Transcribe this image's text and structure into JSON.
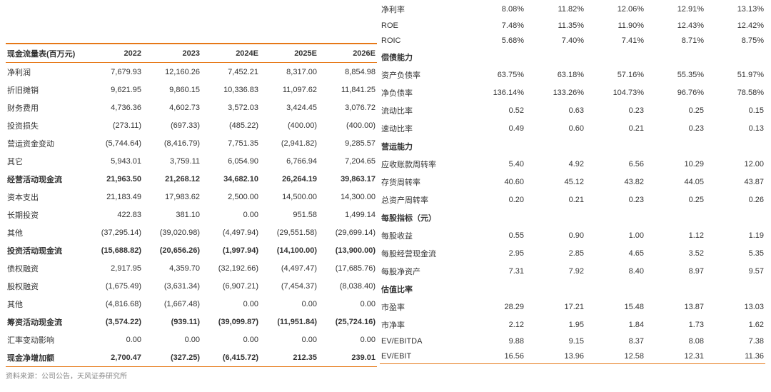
{
  "colors": {
    "accent": "#e67817",
    "text": "#333333",
    "muted": "#888888",
    "bg": "#ffffff"
  },
  "left": {
    "title": "现金流量表(百万元)",
    "years": [
      "2022",
      "2023",
      "2024E",
      "2025E",
      "2026E"
    ],
    "rows": [
      {
        "label": "净利润",
        "v": [
          "7,679.93",
          "12,160.26",
          "7,452.21",
          "8,317.00",
          "8,854.98"
        ]
      },
      {
        "label": "折旧摊销",
        "v": [
          "9,621.95",
          "9,860.15",
          "10,336.83",
          "11,097.62",
          "11,841.25"
        ]
      },
      {
        "label": "财务费用",
        "v": [
          "4,736.36",
          "4,602.73",
          "3,572.03",
          "3,424.45",
          "3,076.72"
        ]
      },
      {
        "label": "投资损失",
        "v": [
          "(273.11)",
          "(697.33)",
          "(485.22)",
          "(400.00)",
          "(400.00)"
        ]
      },
      {
        "label": "营运资金变动",
        "v": [
          "(5,744.64)",
          "(8,416.79)",
          "7,751.35",
          "(2,941.82)",
          "9,285.57"
        ]
      },
      {
        "label": "其它",
        "v": [
          "5,943.01",
          "3,759.11",
          "6,054.90",
          "6,766.94",
          "7,204.65"
        ]
      },
      {
        "label": "经营活动现金流",
        "bold": true,
        "v": [
          "21,963.50",
          "21,268.12",
          "34,682.10",
          "26,264.19",
          "39,863.17"
        ]
      },
      {
        "label": "资本支出",
        "v": [
          "21,183.49",
          "17,983.62",
          "2,500.00",
          "14,500.00",
          "14,300.00"
        ]
      },
      {
        "label": "长期投资",
        "v": [
          "422.83",
          "381.10",
          "0.00",
          "951.58",
          "1,499.14"
        ]
      },
      {
        "label": "其他",
        "v": [
          "(37,295.14)",
          "(39,020.98)",
          "(4,497.94)",
          "(29,551.58)",
          "(29,699.14)"
        ]
      },
      {
        "label": "投资活动现金流",
        "bold": true,
        "v": [
          "(15,688.82)",
          "(20,656.26)",
          "(1,997.94)",
          "(14,100.00)",
          "(13,900.00)"
        ]
      },
      {
        "label": "债权融资",
        "v": [
          "2,917.95",
          "4,359.70",
          "(32,192.66)",
          "(4,497.47)",
          "(17,685.76)"
        ]
      },
      {
        "label": "股权融资",
        "v": [
          "(1,675.49)",
          "(3,631.34)",
          "(6,907.21)",
          "(7,454.37)",
          "(8,038.40)"
        ]
      },
      {
        "label": "其他",
        "v": [
          "(4,816.68)",
          "(1,667.48)",
          "0.00",
          "0.00",
          "0.00"
        ]
      },
      {
        "label": "筹资活动现金流",
        "bold": true,
        "v": [
          "(3,574.22)",
          "(939.11)",
          "(39,099.87)",
          "(11,951.84)",
          "(25,724.16)"
        ]
      },
      {
        "label": "汇率变动影响",
        "v": [
          "0.00",
          "0.00",
          "0.00",
          "0.00",
          "0.00"
        ]
      },
      {
        "label": "现金净增加额",
        "final": true,
        "v": [
          "2,700.47",
          "(327.25)",
          "(6,415.72)",
          "212.35",
          "239.01"
        ]
      }
    ]
  },
  "right": {
    "rows": [
      {
        "label": "净利率",
        "v": [
          "8.08%",
          "11.82%",
          "12.06%",
          "12.91%",
          "13.13%"
        ]
      },
      {
        "label": "ROE",
        "v": [
          "7.48%",
          "11.35%",
          "11.90%",
          "12.43%",
          "12.42%"
        ]
      },
      {
        "label": "ROIC",
        "v": [
          "5.68%",
          "7.40%",
          "7.41%",
          "8.71%",
          "8.75%"
        ]
      },
      {
        "label": "偿债能力",
        "section": true
      },
      {
        "label": "资产负债率",
        "v": [
          "63.75%",
          "63.18%",
          "57.16%",
          "55.35%",
          "51.97%"
        ]
      },
      {
        "label": "净负债率",
        "v": [
          "136.14%",
          "133.26%",
          "104.73%",
          "96.76%",
          "78.58%"
        ]
      },
      {
        "label": "流动比率",
        "v": [
          "0.52",
          "0.63",
          "0.23",
          "0.25",
          "0.15"
        ]
      },
      {
        "label": "速动比率",
        "v": [
          "0.49",
          "0.60",
          "0.21",
          "0.23",
          "0.13"
        ]
      },
      {
        "label": "营运能力",
        "section": true
      },
      {
        "label": "应收账款周转率",
        "v": [
          "5.40",
          "4.92",
          "6.56",
          "10.29",
          "12.00"
        ]
      },
      {
        "label": "存货周转率",
        "v": [
          "40.60",
          "45.12",
          "43.82",
          "44.05",
          "43.87"
        ]
      },
      {
        "label": "总资产周转率",
        "v": [
          "0.20",
          "0.21",
          "0.23",
          "0.25",
          "0.26"
        ]
      },
      {
        "label": "每股指标（元）",
        "section": true
      },
      {
        "label": "每股收益",
        "v": [
          "0.55",
          "0.90",
          "1.00",
          "1.12",
          "1.19"
        ]
      },
      {
        "label": "每股经营现金流",
        "v": [
          "2.95",
          "2.85",
          "4.65",
          "3.52",
          "5.35"
        ]
      },
      {
        "label": "每股净资产",
        "v": [
          "7.31",
          "7.92",
          "8.40",
          "8.97",
          "9.57"
        ]
      },
      {
        "label": "估值比率",
        "section": true
      },
      {
        "label": "市盈率",
        "v": [
          "28.29",
          "17.21",
          "15.48",
          "13.87",
          "13.03"
        ]
      },
      {
        "label": "市净率",
        "v": [
          "2.12",
          "1.95",
          "1.84",
          "1.73",
          "1.62"
        ]
      },
      {
        "label": "EV/EBITDA",
        "v": [
          "9.88",
          "9.15",
          "8.37",
          "8.08",
          "7.38"
        ]
      },
      {
        "label": "EV/EBIT",
        "finalLight": true,
        "v": [
          "16.56",
          "13.96",
          "12.58",
          "12.31",
          "11.36"
        ]
      }
    ]
  },
  "source": "资料来源：公司公告，天风证券研究所"
}
